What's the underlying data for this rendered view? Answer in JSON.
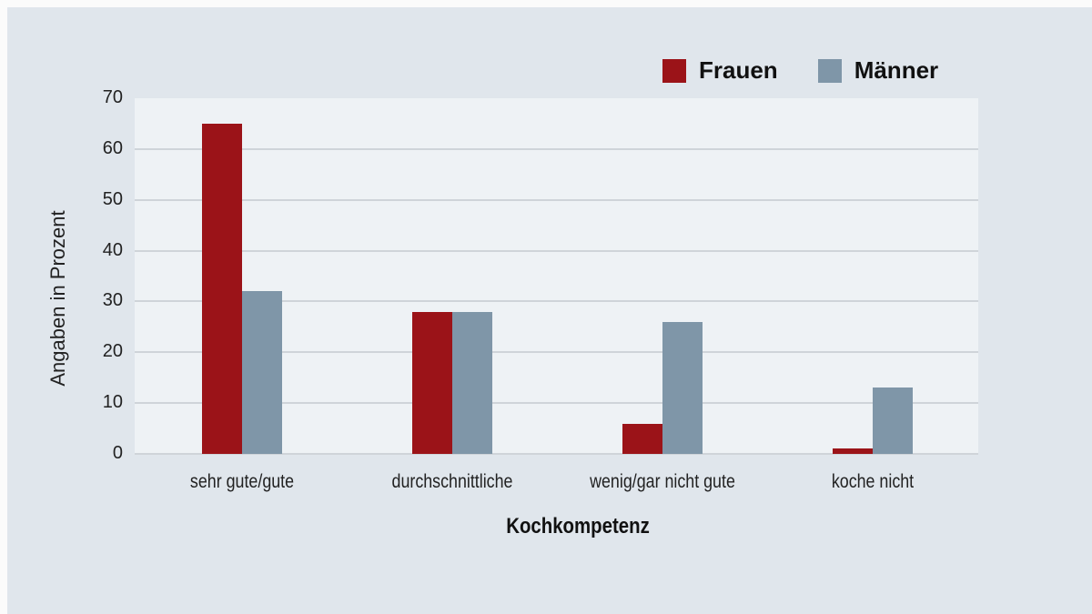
{
  "chart_data": {
    "type": "bar",
    "title": "",
    "xlabel": "Kochkompetenz",
    "ylabel": "Angaben in Prozent",
    "ylim": [
      0,
      70
    ],
    "yticks": [
      0,
      10,
      20,
      30,
      40,
      50,
      60,
      70
    ],
    "grid": true,
    "legend_position": "top-right",
    "categories": [
      "sehr gute/gute",
      "durchschnittliche",
      "wenig/gar nicht gute",
      "koche nicht"
    ],
    "series": [
      {
        "name": "Frauen",
        "color": "#9b1318",
        "values": [
          65,
          28,
          6,
          1
        ]
      },
      {
        "name": "Männer",
        "color": "#7f96a8",
        "values": [
          32,
          28,
          26,
          13
        ]
      }
    ]
  }
}
